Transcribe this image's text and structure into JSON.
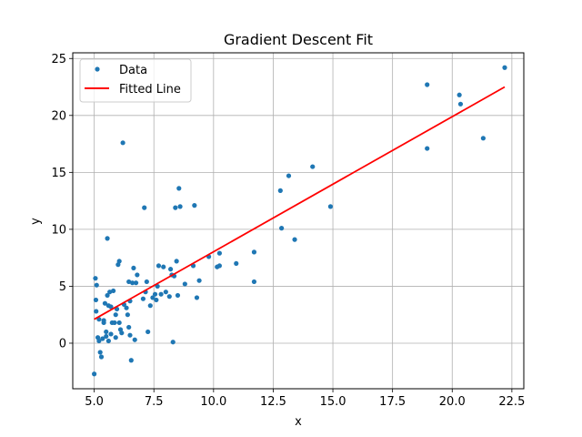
{
  "chart_data": {
    "type": "scatter",
    "title": "Gradient Descent Fit",
    "xlabel": "x",
    "ylabel": "y",
    "xlim": [
      4.1,
      23.0
    ],
    "ylim": [
      -4.0,
      25.5
    ],
    "xticks": [
      5.0,
      7.5,
      10.0,
      12.5,
      15.0,
      17.5,
      20.0,
      22.5
    ],
    "xtick_labels": [
      "5.0",
      "7.5",
      "10.0",
      "12.5",
      "15.0",
      "17.5",
      "20.0",
      "22.5"
    ],
    "yticks": [
      0,
      5,
      10,
      15,
      20,
      25
    ],
    "ytick_labels": [
      "0",
      "5",
      "10",
      "15",
      "20",
      "25"
    ],
    "grid": true,
    "legend": {
      "placement": "top-left",
      "entries": [
        {
          "label": "Data",
          "marker": "dot",
          "color": "#1f77b4"
        },
        {
          "label": "Fitted Line",
          "marker": "line",
          "color": "#ff0000"
        }
      ]
    },
    "series": [
      {
        "name": "Data",
        "kind": "scatter",
        "color": "#1f77b4",
        "points": [
          [
            5.0,
            -2.7
          ],
          [
            5.05,
            5.7
          ],
          [
            5.07,
            3.8
          ],
          [
            5.08,
            2.8
          ],
          [
            5.1,
            5.1
          ],
          [
            5.15,
            0.5
          ],
          [
            5.2,
            2.1
          ],
          [
            5.2,
            0.2
          ],
          [
            5.25,
            -0.8
          ],
          [
            5.3,
            -1.2
          ],
          [
            5.35,
            0.4
          ],
          [
            5.4,
            1.8
          ],
          [
            5.4,
            2.0
          ],
          [
            5.45,
            3.5
          ],
          [
            5.5,
            1.0
          ],
          [
            5.5,
            0.6
          ],
          [
            5.55,
            4.2
          ],
          [
            5.55,
            9.2
          ],
          [
            5.6,
            3.3
          ],
          [
            5.6,
            0.2
          ],
          [
            5.65,
            4.5
          ],
          [
            5.7,
            3.2
          ],
          [
            5.7,
            0.8
          ],
          [
            5.75,
            1.8
          ],
          [
            5.8,
            4.6
          ],
          [
            5.85,
            1.8
          ],
          [
            5.9,
            2.5
          ],
          [
            5.9,
            0.5
          ],
          [
            5.95,
            3.0
          ],
          [
            6.0,
            6.9
          ],
          [
            6.05,
            7.2
          ],
          [
            6.05,
            1.8
          ],
          [
            6.1,
            1.2
          ],
          [
            6.15,
            0.9
          ],
          [
            6.2,
            17.6
          ],
          [
            6.25,
            3.4
          ],
          [
            6.35,
            3.1
          ],
          [
            6.4,
            2.5
          ],
          [
            6.45,
            1.4
          ],
          [
            6.45,
            5.4
          ],
          [
            6.5,
            0.7
          ],
          [
            6.5,
            3.7
          ],
          [
            6.55,
            -1.5
          ],
          [
            6.6,
            5.3
          ],
          [
            6.65,
            6.6
          ],
          [
            6.7,
            0.3
          ],
          [
            6.75,
            5.3
          ],
          [
            6.8,
            6.0
          ],
          [
            7.05,
            3.9
          ],
          [
            7.1,
            11.9
          ],
          [
            7.15,
            4.5
          ],
          [
            7.2,
            5.4
          ],
          [
            7.25,
            1.0
          ],
          [
            7.35,
            3.3
          ],
          [
            7.45,
            4.0
          ],
          [
            7.55,
            4.3
          ],
          [
            7.6,
            3.8
          ],
          [
            7.65,
            5.0
          ],
          [
            7.7,
            6.8
          ],
          [
            7.8,
            4.3
          ],
          [
            7.9,
            6.7
          ],
          [
            8.0,
            4.5
          ],
          [
            8.15,
            4.1
          ],
          [
            8.2,
            6.5
          ],
          [
            8.25,
            6.0
          ],
          [
            8.3,
            0.1
          ],
          [
            8.35,
            5.9
          ],
          [
            8.4,
            11.9
          ],
          [
            8.45,
            7.2
          ],
          [
            8.5,
            4.2
          ],
          [
            8.55,
            13.6
          ],
          [
            8.6,
            12.0
          ],
          [
            8.8,
            5.2
          ],
          [
            9.15,
            6.8
          ],
          [
            9.2,
            12.1
          ],
          [
            9.3,
            4.0
          ],
          [
            9.4,
            5.5
          ],
          [
            9.8,
            7.6
          ],
          [
            10.15,
            6.7
          ],
          [
            10.25,
            6.8
          ],
          [
            10.25,
            7.9
          ],
          [
            10.95,
            7.0
          ],
          [
            11.7,
            8.0
          ],
          [
            11.7,
            5.4
          ],
          [
            12.8,
            13.4
          ],
          [
            12.85,
            10.1
          ],
          [
            13.15,
            14.7
          ],
          [
            13.4,
            9.1
          ],
          [
            14.15,
            15.5
          ],
          [
            14.9,
            12.0
          ],
          [
            18.95,
            22.7
          ],
          [
            18.95,
            17.1
          ],
          [
            20.3,
            21.8
          ],
          [
            20.35,
            21.0
          ],
          [
            21.3,
            18.0
          ],
          [
            22.2,
            24.2
          ]
        ]
      },
      {
        "name": "Fitted Line",
        "kind": "line",
        "color": "#ff0000",
        "points": [
          [
            5.0,
            2.1
          ],
          [
            22.2,
            22.5
          ]
        ]
      }
    ]
  }
}
